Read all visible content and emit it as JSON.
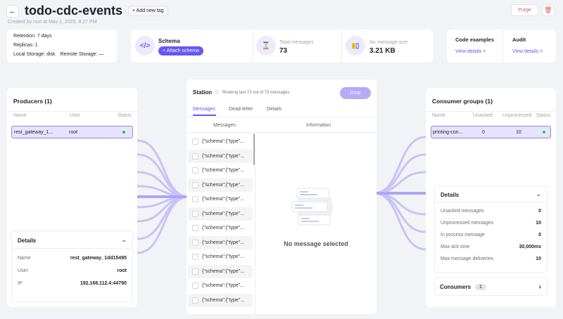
{
  "header": {
    "title": "todo-cdc-events",
    "add_tag": "+ Add new tag",
    "created": "Created by root at May 1, 2023, 8:27 PM",
    "purge": "Purge"
  },
  "info": {
    "retention": "Retention: 7 days",
    "replicas": "Replicas: 1",
    "local_storage": "Local Storage: disk",
    "remote_storage": "Remote Storage: —"
  },
  "schema": {
    "title": "Schema",
    "attach": "+ Attach schema"
  },
  "stats": {
    "total_label": "Total messages",
    "total_value": "73",
    "avg_label": "Av. message size",
    "avg_value": "3.21 KB"
  },
  "links": {
    "code_title": "Code examples",
    "code_link": "View details >",
    "audit_title": "Audit",
    "audit_link": "View details >"
  },
  "producers": {
    "title": "Producers (1)",
    "cols": [
      "Name",
      "User",
      "Status"
    ],
    "row": {
      "name": "rest_gateway_1...",
      "user": "root",
      "status": "connected"
    },
    "details": {
      "title": "Details",
      "items": [
        {
          "k": "Name",
          "v": "rest_gateway_1dd15495"
        },
        {
          "k": "User",
          "v": "root"
        },
        {
          "k": "IP",
          "v": "192.168.112.4:44790"
        }
      ]
    }
  },
  "station": {
    "title": "Station",
    "showing": "Showing last 73 out of 73 messages",
    "drop": "Drop",
    "tabs": [
      "Messages",
      "Dead-letter",
      "Details"
    ],
    "active_tab": "Messages",
    "col_messages": "Messages",
    "col_info": "Information",
    "messages": [
      "{\"schema\":{\"type\"...",
      "{\"schema\":{\"type\"...",
      "{\"schema\":{\"type\"...",
      "{\"schema\":{\"type\"...",
      "{\"schema\":{\"type\"...",
      "{\"schema\":{\"type\"...",
      "{\"schema\":{\"type\"...",
      "{\"schema\":{\"type\"...",
      "{\"schema\":{\"type\"...",
      "{\"schema\":{\"type\"...",
      "{\"schema\":{\"type\"...",
      "{\"schema\":{\"type\"..."
    ],
    "empty": "No message selected"
  },
  "consumers": {
    "title": "Consumer groups (1)",
    "cols": [
      "Name",
      "Unacked",
      "Unprocessed",
      "Status"
    ],
    "row": {
      "name": "printing-con...",
      "unacked": "0",
      "unprocessed": "10",
      "status": "connected"
    },
    "details": {
      "title": "Details",
      "items": [
        {
          "k": "Unacked messages",
          "v": "0"
        },
        {
          "k": "Unprocessed messages",
          "v": "10"
        },
        {
          "k": "In process message",
          "v": "0"
        },
        {
          "k": "Max ack time",
          "v": "30,000ms"
        },
        {
          "k": "Max message deliveries",
          "v": "10"
        }
      ]
    },
    "consumers_label": "Consumers",
    "consumers_count": "1"
  },
  "colors": {
    "accent": "#6557f5",
    "purge": "#e8574c",
    "status": "#2eb84f"
  }
}
